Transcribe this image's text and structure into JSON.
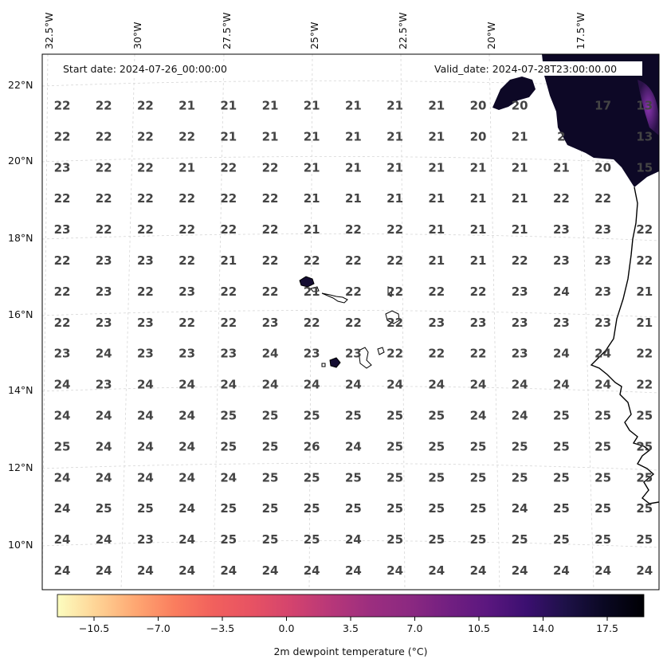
{
  "map": {
    "longitude_labels": [
      "32.5°W",
      "30°W",
      "27.5°W",
      "25°W",
      "22.5°W",
      "20°W",
      "17.5°W"
    ],
    "latitude_labels": [
      "22°N",
      "20°N",
      "18°N",
      "16°N",
      "14°N",
      "12°N",
      "10°N"
    ],
    "start_date_label": "Start date: 2024-07-26_00:00:00",
    "valid_date_label": "Valid_date: 2024-07-28T23:00:00.00",
    "colors": {
      "land_dark": "#0b0720",
      "land_mid": "#2b1249",
      "land_hot": "#7b2ea0",
      "value_text": "#444444",
      "grid_line": "#cccccc"
    }
  },
  "dewpoint_grid": [
    [
      "22",
      "22",
      "22",
      "21",
      "21",
      "21",
      "21",
      "21",
      "21",
      "21",
      "20",
      "20",
      "",
      "17",
      "13"
    ],
    [
      "22",
      "22",
      "22",
      "22",
      "21",
      "21",
      "21",
      "21",
      "21",
      "21",
      "20",
      "21",
      "2",
      "",
      "13"
    ],
    [
      "23",
      "22",
      "22",
      "21",
      "22",
      "22",
      "21",
      "21",
      "21",
      "21",
      "21",
      "21",
      "21",
      "20",
      "15"
    ],
    [
      "22",
      "22",
      "22",
      "22",
      "22",
      "22",
      "21",
      "21",
      "21",
      "21",
      "21",
      "21",
      "22",
      "22",
      ""
    ],
    [
      "23",
      "22",
      "22",
      "22",
      "22",
      "22",
      "21",
      "22",
      "22",
      "21",
      "21",
      "21",
      "23",
      "23",
      "22"
    ],
    [
      "22",
      "23",
      "23",
      "22",
      "21",
      "22",
      "22",
      "22",
      "22",
      "21",
      "21",
      "22",
      "23",
      "23",
      "22"
    ],
    [
      "22",
      "23",
      "22",
      "23",
      "22",
      "22",
      "21",
      "22",
      "22",
      "22",
      "22",
      "23",
      "24",
      "23",
      "21"
    ],
    [
      "22",
      "23",
      "23",
      "22",
      "22",
      "23",
      "22",
      "22",
      "22",
      "23",
      "23",
      "23",
      "23",
      "23",
      "21"
    ],
    [
      "23",
      "24",
      "23",
      "23",
      "23",
      "24",
      "23",
      "23",
      "22",
      "22",
      "22",
      "23",
      "24",
      "24",
      "22"
    ],
    [
      "24",
      "23",
      "24",
      "24",
      "24",
      "24",
      "24",
      "24",
      "24",
      "24",
      "24",
      "24",
      "24",
      "24",
      "22"
    ],
    [
      "24",
      "24",
      "24",
      "24",
      "25",
      "25",
      "25",
      "25",
      "25",
      "25",
      "24",
      "24",
      "25",
      "25",
      "25"
    ],
    [
      "25",
      "24",
      "24",
      "24",
      "25",
      "25",
      "26",
      "24",
      "25",
      "25",
      "25",
      "25",
      "25",
      "25",
      "25"
    ],
    [
      "24",
      "24",
      "24",
      "24",
      "24",
      "25",
      "25",
      "25",
      "25",
      "25",
      "25",
      "25",
      "25",
      "25",
      "25"
    ],
    [
      "24",
      "25",
      "25",
      "24",
      "25",
      "25",
      "25",
      "25",
      "25",
      "25",
      "25",
      "24",
      "25",
      "25",
      "25"
    ],
    [
      "24",
      "24",
      "23",
      "24",
      "25",
      "25",
      "25",
      "24",
      "25",
      "25",
      "25",
      "25",
      "25",
      "25",
      "25"
    ],
    [
      "24",
      "24",
      "24",
      "24",
      "24",
      "24",
      "24",
      "24",
      "24",
      "24",
      "24",
      "24",
      "24",
      "24",
      "24"
    ]
  ],
  "colorbar": {
    "label": "2m dewpoint temperature ($^\\circ$C)",
    "ticks": [
      "−10.5",
      "−7.0",
      "−3.5",
      "0.0",
      "3.5",
      "7.0",
      "10.5",
      "14.0",
      "17.5"
    ],
    "tick_values": [
      -10.5,
      -7.0,
      -3.5,
      0.0,
      3.5,
      7.0,
      10.5,
      14.0,
      17.5
    ],
    "range": [
      -12.5,
      19.5
    ],
    "colormap_stops": [
      "#fcfdbf",
      "#fed395",
      "#fea772",
      "#fa7d5e",
      "#f1605d",
      "#e75263",
      "#d3436e",
      "#b73779",
      "#9c2e7f",
      "#8c2981",
      "#721f81",
      "#5b177f",
      "#3b0f70",
      "#1d1147",
      "#0a0822",
      "#000004"
    ]
  }
}
